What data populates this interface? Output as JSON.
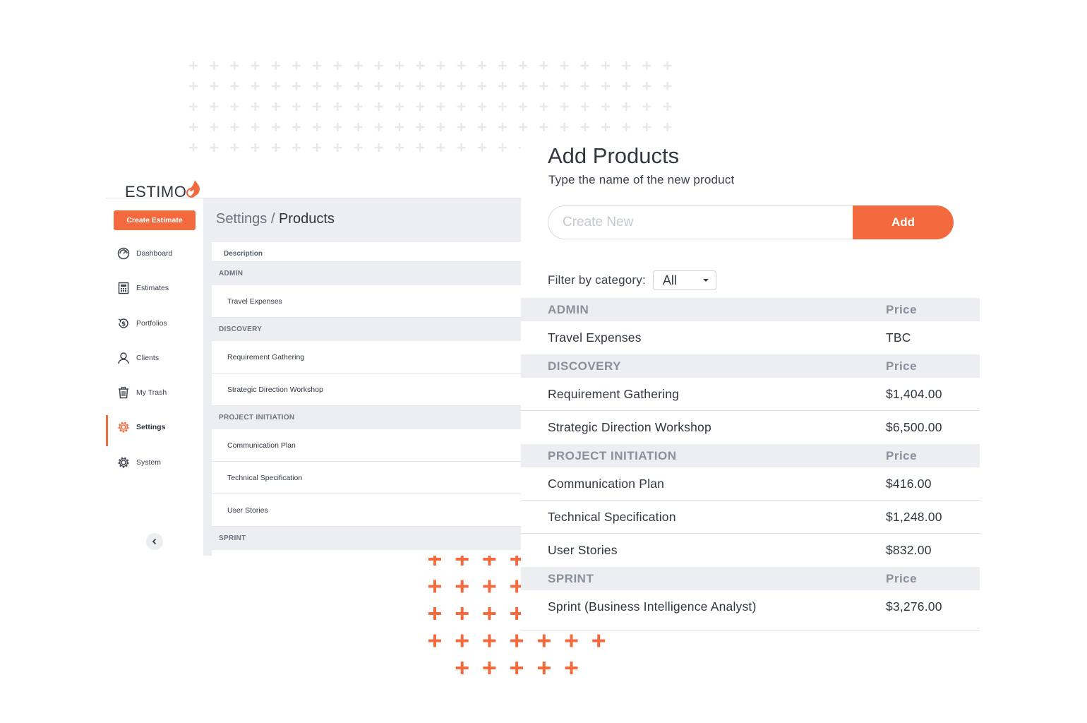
{
  "app": {
    "logo_text": "ESTIMO"
  },
  "sidebar": {
    "create_label": "Create Estimate",
    "items": [
      {
        "label": "Dashboard",
        "icon": "dashboard-icon"
      },
      {
        "label": "Estimates",
        "icon": "calculator-icon"
      },
      {
        "label": "Portfolios",
        "icon": "portfolio-icon"
      },
      {
        "label": "Clients",
        "icon": "user-icon"
      },
      {
        "label": "My Trash",
        "icon": "trash-icon"
      },
      {
        "label": "Settings",
        "icon": "gear-icon",
        "active": true
      },
      {
        "label": "System",
        "icon": "gear-icon"
      }
    ]
  },
  "back": {
    "breadcrumb_parent": "Settings",
    "breadcrumb_sep": "/",
    "breadcrumb_current": "Products",
    "column_header": "Description",
    "groups": [
      {
        "category": "ADMIN",
        "items": [
          "Travel Expenses"
        ]
      },
      {
        "category": "DISCOVERY",
        "items": [
          "Requirement Gathering",
          "Strategic Direction Workshop"
        ]
      },
      {
        "category": "PROJECT INITIATION",
        "items": [
          "Communication Plan",
          "Technical Specification",
          "User Stories"
        ]
      },
      {
        "category": "SPRINT",
        "items": []
      }
    ]
  },
  "front": {
    "title": "Add Products",
    "subtitle": "Type the name of the new product",
    "input_placeholder": "Create New",
    "add_label": "Add",
    "filter_label": "Filter by category:",
    "filter_value": "All",
    "price_header": "Price",
    "groups": [
      {
        "category": "ADMIN",
        "items": [
          {
            "name": "Travel Expenses",
            "price": "TBC"
          }
        ]
      },
      {
        "category": "DISCOVERY",
        "items": [
          {
            "name": "Requirement Gathering",
            "price": "$1,404.00"
          },
          {
            "name": "Strategic Direction Workshop",
            "price": "$6,500.00"
          }
        ]
      },
      {
        "category": "PROJECT INITIATION",
        "items": [
          {
            "name": "Communication Plan",
            "price": "$416.00"
          },
          {
            "name": "Technical Specification",
            "price": "$1,248.00"
          },
          {
            "name": "User Stories",
            "price": "$832.00"
          }
        ]
      },
      {
        "category": "SPRINT",
        "items": [
          {
            "name": "Sprint (Business Intelligence Analyst)",
            "price": "$3,276.00"
          }
        ]
      }
    ]
  },
  "colors": {
    "accent": "#f26a3d",
    "muted_bg": "#eceef2",
    "plus_gray": "#e6e8ec"
  }
}
